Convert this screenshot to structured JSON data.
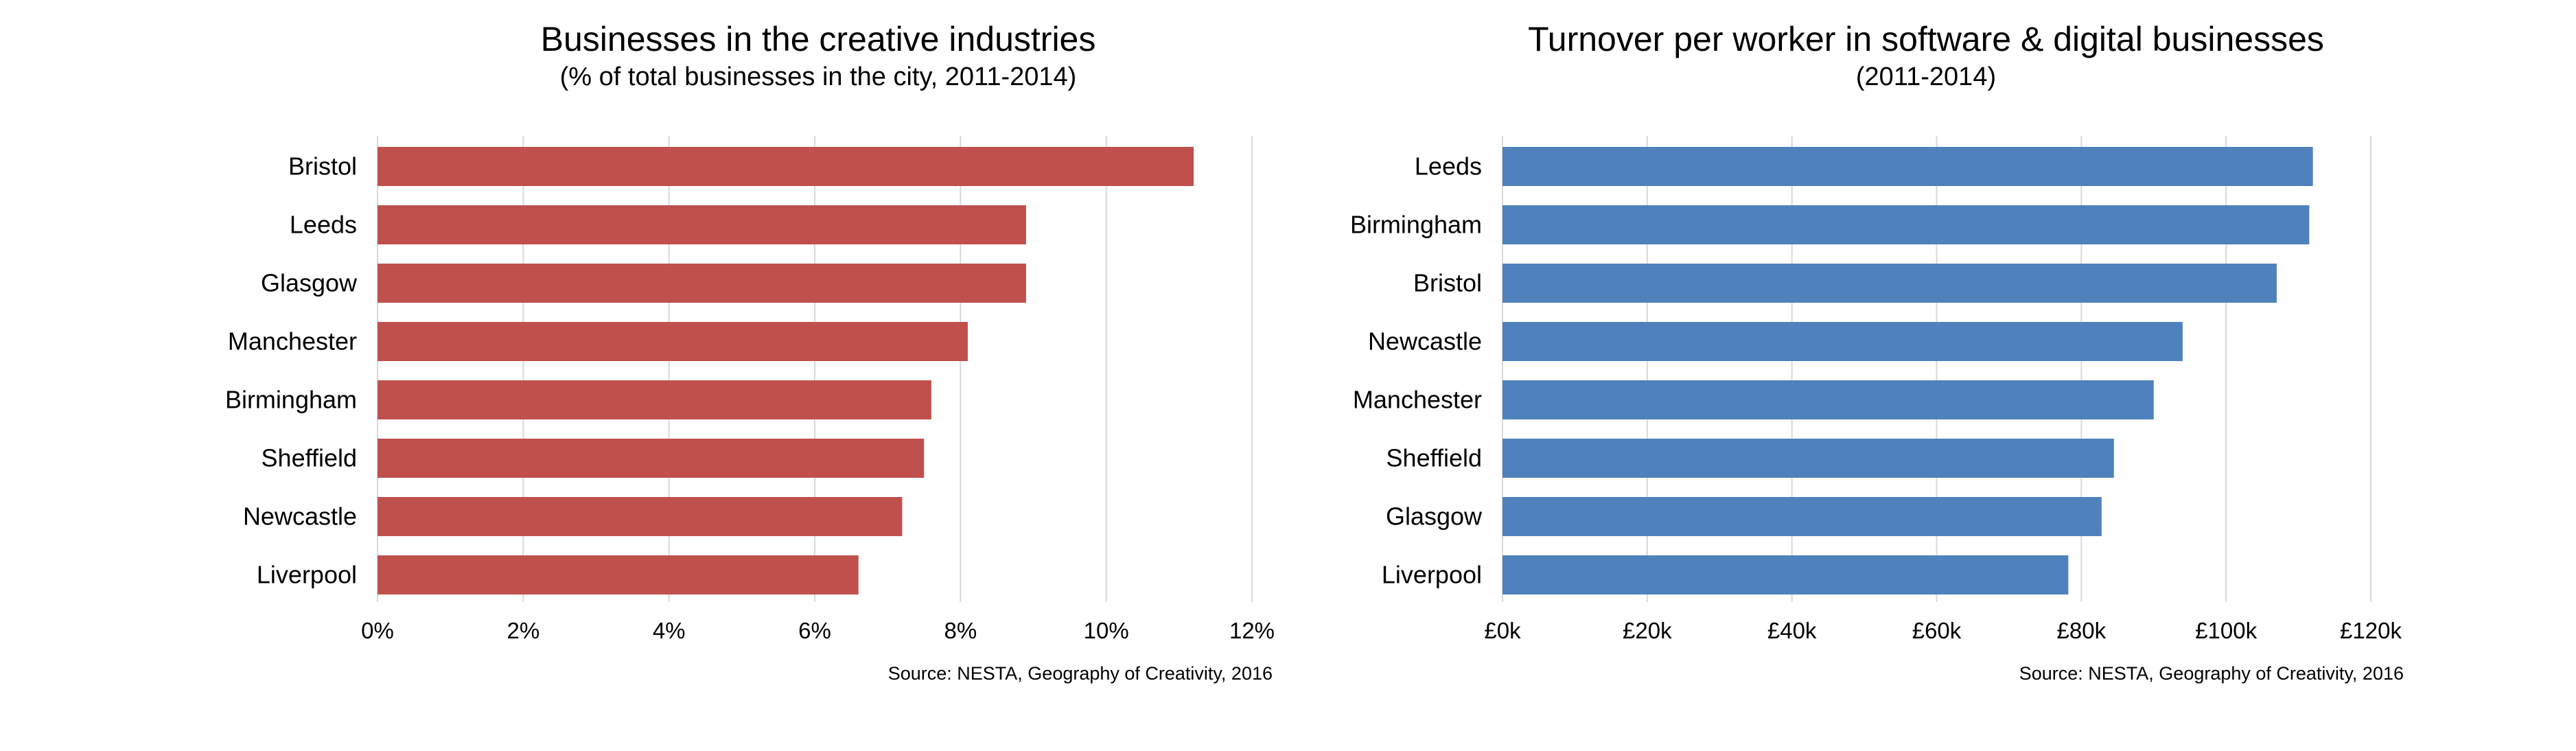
{
  "chart_data": [
    {
      "type": "bar",
      "orientation": "horizontal",
      "title": "Businesses in the creative industries",
      "subtitle": "(% of total businesses in the city, 2011-2014)",
      "categories": [
        "Bristol",
        "Leeds",
        "Glasgow",
        "Manchester",
        "Birmingham",
        "Sheffield",
        "Newcastle",
        "Liverpool"
      ],
      "values": [
        11.2,
        8.9,
        8.9,
        8.1,
        7.6,
        7.5,
        7.2,
        6.6
      ],
      "xlim": [
        0,
        12
      ],
      "ticks": [
        0,
        2,
        4,
        6,
        8,
        10,
        12
      ],
      "tick_labels": [
        "0%",
        "2%",
        "4%",
        "6%",
        "8%",
        "10%",
        "12%"
      ],
      "grid": "vertical",
      "color": "#c0504d",
      "source": "Source: NESTA, Geography of Creativity, 2016"
    },
    {
      "type": "bar",
      "orientation": "horizontal",
      "title": "Turnover per worker in software & digital businesses",
      "subtitle": "(2011-2014)",
      "categories": [
        "Leeds",
        "Birmingham",
        "Bristol",
        "Newcastle",
        "Manchester",
        "Sheffield",
        "Glasgow",
        "Liverpool"
      ],
      "values": [
        112000,
        111500,
        107000,
        94000,
        90000,
        84500,
        82800,
        78200
      ],
      "xlim": [
        0,
        120000
      ],
      "ticks": [
        0,
        20000,
        40000,
        60000,
        80000,
        100000,
        120000
      ],
      "tick_labels": [
        "£0k",
        "£20k",
        "£40k",
        "£60k",
        "£80k",
        "£100k",
        "£120k"
      ],
      "grid": "vertical",
      "color": "#4f81bd",
      "source": "Source: NESTA, Geography of Creativity, 2016"
    }
  ]
}
